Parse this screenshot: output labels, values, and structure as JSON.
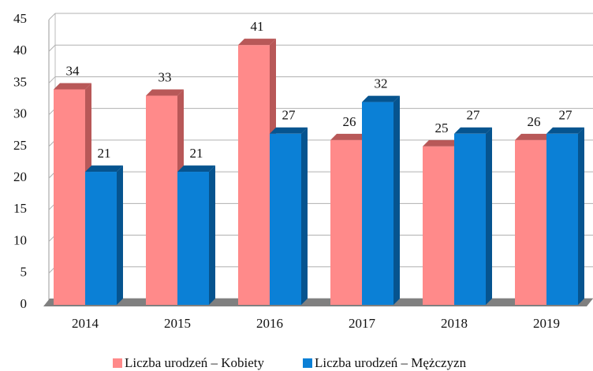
{
  "chart_data": {
    "type": "bar3d",
    "categories": [
      "2014",
      "2015",
      "2016",
      "2017",
      "2018",
      "2019"
    ],
    "series": [
      {
        "name": "Liczba urodzeń – Kobiety",
        "color": "#ff8a8a",
        "side": "#b85858",
        "values": [
          34,
          33,
          41,
          26,
          25,
          26
        ]
      },
      {
        "name": "Liczba urodzeń – Mężczyzn",
        "color": "#0b80d6",
        "side": "#06548f",
        "values": [
          21,
          21,
          27,
          32,
          27,
          27
        ]
      }
    ],
    "ylim": [
      0,
      45
    ],
    "yticks": [
      0,
      5,
      10,
      15,
      20,
      25,
      30,
      35,
      40,
      45
    ],
    "grid": true,
    "legend": "bottom"
  }
}
